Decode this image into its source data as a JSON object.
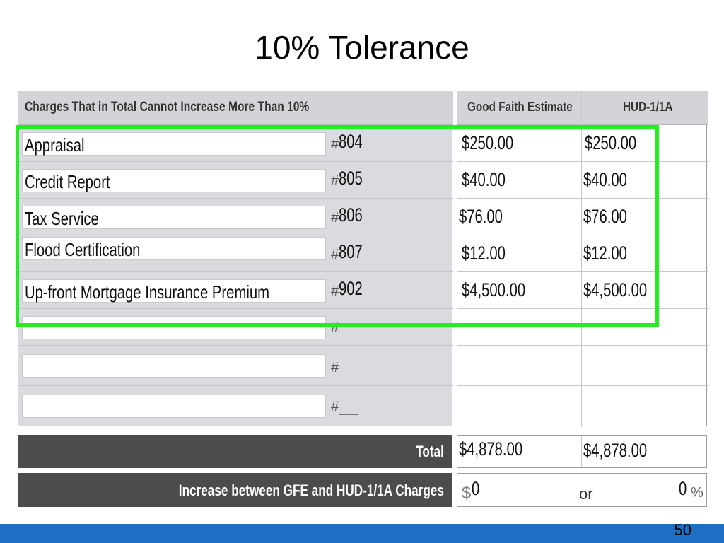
{
  "slide": {
    "title": "10% Tolerance",
    "page_number": "50",
    "highlight_color": "#22ee22",
    "footer_color": "#1d6fc4"
  },
  "form": {
    "section_header": "Charges That in Total Cannot Increase More Than 10%",
    "columns": {
      "gfe": "Good Faith Estimate",
      "hud": "HUD-1/1A"
    },
    "hash_symbol": "#",
    "rows": [
      {
        "label": "Appraisal",
        "line": "804",
        "gfe": "$250.00",
        "hud": "$250.00"
      },
      {
        "label": "Credit Report",
        "line": "805",
        "gfe": "$40.00",
        "hud": "$40.00"
      },
      {
        "label": "Tax Service",
        "line": "806",
        "gfe": "$76.00",
        "hud": "$76.00"
      },
      {
        "label": "Flood Certification",
        "line": "807",
        "gfe": "$12.00",
        "hud": "$12.00"
      },
      {
        "label": "Up-front Mortgage Insurance Premium",
        "line": "902",
        "gfe": "$4,500.00",
        "hud": "$4,500.00"
      },
      {
        "label": "",
        "line": "",
        "gfe": "",
        "hud": ""
      },
      {
        "label": "",
        "line": "",
        "gfe": "",
        "hud": ""
      },
      {
        "label": "",
        "line": "",
        "gfe": "",
        "hud": ""
      }
    ],
    "total": {
      "label": "Total",
      "gfe": "$4,878.00",
      "hud": "$4,878.00"
    },
    "increase": {
      "label": "Increase between GFE and HUD-1/1A Charges",
      "dollar_symbol": "$",
      "amount": "0",
      "or_text": "or",
      "percent": "0",
      "percent_symbol": "%"
    }
  }
}
